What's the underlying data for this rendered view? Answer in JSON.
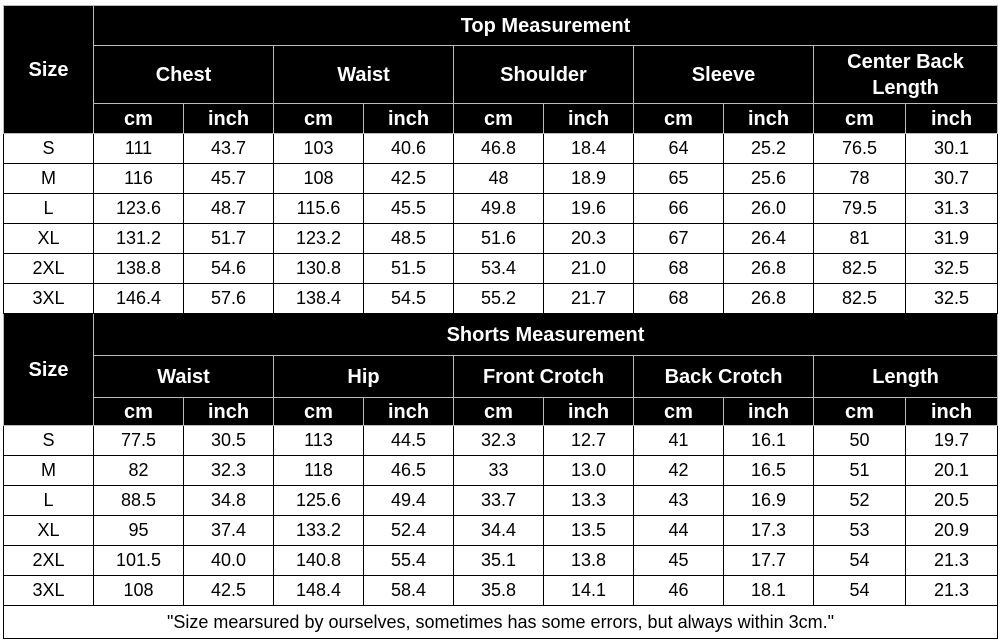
{
  "top": {
    "size_label": "Size",
    "title": "Top Measurement",
    "groups": [
      "Chest",
      "Waist",
      "Shoulder",
      "Sleeve",
      "Center Back Length"
    ],
    "units": [
      "cm",
      "inch",
      "cm",
      "inch",
      "cm",
      "inch",
      "cm",
      "inch",
      "cm",
      "inch"
    ],
    "rows": [
      [
        "S",
        "111",
        "43.7",
        "103",
        "40.6",
        "46.8",
        "18.4",
        "64",
        "25.2",
        "76.5",
        "30.1"
      ],
      [
        "M",
        "116",
        "45.7",
        "108",
        "42.5",
        "48",
        "18.9",
        "65",
        "25.6",
        "78",
        "30.7"
      ],
      [
        "L",
        "123.6",
        "48.7",
        "115.6",
        "45.5",
        "49.8",
        "19.6",
        "66",
        "26.0",
        "79.5",
        "31.3"
      ],
      [
        "XL",
        "131.2",
        "51.7",
        "123.2",
        "48.5",
        "51.6",
        "20.3",
        "67",
        "26.4",
        "81",
        "31.9"
      ],
      [
        "2XL",
        "138.8",
        "54.6",
        "130.8",
        "51.5",
        "53.4",
        "21.0",
        "68",
        "26.8",
        "82.5",
        "32.5"
      ],
      [
        "3XL",
        "146.4",
        "57.6",
        "138.4",
        "54.5",
        "55.2",
        "21.7",
        "68",
        "26.8",
        "82.5",
        "32.5"
      ]
    ]
  },
  "shorts": {
    "size_label": "Size",
    "title": "Shorts Measurement",
    "groups": [
      "Waist",
      "Hip",
      "Front Crotch",
      "Back Crotch",
      "Length"
    ],
    "units": [
      "cm",
      "inch",
      "cm",
      "inch",
      "cm",
      "inch",
      "cm",
      "inch",
      "cm",
      "inch"
    ],
    "rows": [
      [
        "S",
        "77.5",
        "30.5",
        "113",
        "44.5",
        "32.3",
        "12.7",
        "41",
        "16.1",
        "50",
        "19.7"
      ],
      [
        "M",
        "82",
        "32.3",
        "118",
        "46.5",
        "33",
        "13.0",
        "42",
        "16.5",
        "51",
        "20.1"
      ],
      [
        "L",
        "88.5",
        "34.8",
        "125.6",
        "49.4",
        "33.7",
        "13.3",
        "43",
        "16.9",
        "52",
        "20.5"
      ],
      [
        "XL",
        "95",
        "37.4",
        "133.2",
        "52.4",
        "34.4",
        "13.5",
        "44",
        "17.3",
        "53",
        "20.9"
      ],
      [
        "2XL",
        "101.5",
        "40.0",
        "140.8",
        "55.4",
        "35.1",
        "13.8",
        "45",
        "17.7",
        "54",
        "21.3"
      ],
      [
        "3XL",
        "108",
        "42.5",
        "148.4",
        "58.4",
        "35.8",
        "14.1",
        "46",
        "18.1",
        "54",
        "21.3"
      ]
    ]
  },
  "footnote": "\"Size mearsured by ourselves, sometimes has some errors, but always within 3cm.\""
}
